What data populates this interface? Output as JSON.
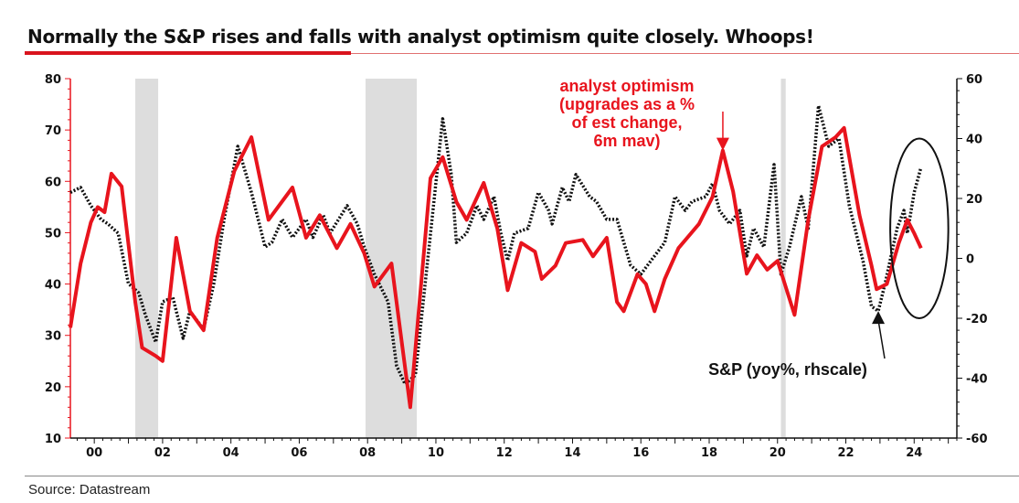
{
  "title": "Normally the S&P rises and falls with analyst optimism quite closely. Whoops!",
  "source": "Source: Datastream",
  "chart_data": {
    "type": "line",
    "title": "Normally the S&P rises and falls with analyst optimism quite closely. Whoops!",
    "xlim": [
      1999.3,
      2025.25
    ],
    "x_ticks": [
      "00",
      "02",
      "04",
      "06",
      "08",
      "10",
      "12",
      "14",
      "16",
      "18",
      "20",
      "22",
      "24"
    ],
    "x_tick_years": [
      2000,
      2002,
      2004,
      2006,
      2008,
      2010,
      2012,
      2014,
      2016,
      2018,
      2020,
      2022,
      2024
    ],
    "y_left": {
      "lim": [
        10,
        80
      ],
      "ticks": [
        10,
        20,
        30,
        40,
        50,
        60,
        70,
        80
      ],
      "color": "#e8141d"
    },
    "y_right": {
      "lim": [
        -60,
        60
      ],
      "ticks": [
        -60,
        -40,
        -20,
        0,
        20,
        40,
        60
      ],
      "color": "#111111"
    },
    "grid": false,
    "recessions": [
      [
        2001.2,
        2001.87
      ],
      [
        2007.94,
        2009.44
      ],
      [
        2020.1,
        2020.24
      ]
    ],
    "recession_color": "#dddddd",
    "series": [
      {
        "name": "analyst optimism (upgrades as a % of est change, 6m mav)",
        "axis": "left",
        "color": "#e8141d",
        "style": "solid",
        "x": [
          1999.3,
          1999.6,
          1999.9,
          2000.1,
          2000.3,
          2000.5,
          2000.8,
          2001.2,
          2001.4,
          2001.8,
          2002.0,
          2002.4,
          2002.8,
          2003.2,
          2003.6,
          2004.1,
          2004.6,
          2005.1,
          2005.8,
          2006.2,
          2006.6,
          2007.1,
          2007.5,
          2007.9,
          2008.2,
          2008.7,
          2009.25,
          2009.84,
          2010.2,
          2010.6,
          2010.9,
          2011.4,
          2011.8,
          2012.1,
          2012.5,
          2012.9,
          2013.1,
          2013.5,
          2013.8,
          2014.3,
          2014.6,
          2015.0,
          2015.3,
          2015.5,
          2015.9,
          2016.15,
          2016.4,
          2016.7,
          2017.1,
          2017.7,
          2018.1,
          2018.4,
          2018.7,
          2019.1,
          2019.4,
          2019.7,
          2020.0,
          2020.5,
          2020.9,
          2021.3,
          2021.7,
          2021.95,
          2022.4,
          2022.75,
          2022.9,
          2023.2,
          2023.55,
          2023.8,
          2024.0,
          2024.2
        ],
        "y": [
          31.5,
          44,
          52,
          55,
          54,
          61.5,
          59,
          36.5,
          27.6,
          26,
          25,
          49,
          34.7,
          31,
          49,
          62,
          68.6,
          52.5,
          58.8,
          49,
          53.4,
          47,
          51.7,
          46,
          39.5,
          44,
          16,
          60.6,
          64.7,
          56,
          52.5,
          59.7,
          50.8,
          38.8,
          48,
          46.3,
          41,
          43.6,
          48,
          48.6,
          45.4,
          49,
          36.5,
          34.7,
          41.9,
          40,
          34.7,
          41,
          47,
          51.7,
          57,
          66,
          58,
          42,
          45.6,
          42.8,
          44.5,
          34,
          52.5,
          66.8,
          68.6,
          70.4,
          53.4,
          43.6,
          39,
          40,
          48,
          52.5,
          49.9,
          47
        ]
      },
      {
        "name": "S&P (yoy%, rhscale)",
        "axis": "right",
        "color": "#111111",
        "style": "dotted",
        "x": [
          1999.3,
          1999.6,
          1999.9,
          2000.2,
          2000.4,
          2000.7,
          2001.0,
          2001.3,
          2001.5,
          2001.8,
          2002.0,
          2002.3,
          2002.6,
          2002.8,
          2003.2,
          2003.5,
          2003.8,
          2004.2,
          2004.6,
          2005.0,
          2005.2,
          2005.5,
          2005.8,
          2006.2,
          2006.4,
          2006.7,
          2006.9,
          2007.4,
          2007.7,
          2007.9,
          2008.2,
          2008.6,
          2008.85,
          2009.1,
          2009.4,
          2009.8,
          2010.2,
          2010.45,
          2010.6,
          2010.9,
          2011.2,
          2011.4,
          2011.7,
          2011.9,
          2012.1,
          2012.3,
          2012.7,
          2013.0,
          2013.3,
          2013.4,
          2013.7,
          2013.9,
          2014.1,
          2014.5,
          2014.7,
          2015.0,
          2015.3,
          2015.7,
          2016.0,
          2016.3,
          2016.7,
          2017.0,
          2017.3,
          2017.5,
          2017.9,
          2018.1,
          2018.3,
          2018.6,
          2018.9,
          2019.1,
          2019.3,
          2019.6,
          2019.9,
          2020.1,
          2020.35,
          2020.7,
          2020.9,
          2021.2,
          2021.5,
          2021.8,
          2022.1,
          2022.5,
          2022.75,
          2022.95,
          2023.15,
          2023.5,
          2023.7,
          2023.8,
          2024.0,
          2024.2
        ],
        "y": [
          22,
          23.7,
          17.6,
          13,
          11.5,
          8.4,
          -8.4,
          -11.5,
          -19,
          -28,
          -14.5,
          -13,
          -26.7,
          -17.6,
          -23.7,
          -8.4,
          13,
          37.4,
          22,
          3.8,
          5.3,
          13,
          7,
          13,
          7,
          14.5,
          8.4,
          17.6,
          11.5,
          3.8,
          -5.3,
          -14.5,
          -35.9,
          -42,
          -39,
          3.8,
          46.6,
          28,
          5.3,
          8.4,
          17.6,
          13,
          20.6,
          8.4,
          -0.7,
          8.4,
          10,
          22,
          16,
          11.5,
          23.7,
          19,
          28,
          20.6,
          19,
          13,
          13,
          -2.3,
          -5.3,
          -0.7,
          5.3,
          20.6,
          16,
          19,
          20.6,
          25,
          16,
          11.5,
          16,
          0.8,
          10,
          3.8,
          31.3,
          -5.3,
          3.8,
          20.6,
          10,
          51,
          37.4,
          40,
          17.6,
          -0.7,
          -16,
          -17.6,
          -8.4,
          10,
          16,
          8.4,
          22,
          30.4
        ]
      }
    ],
    "annotations": [
      {
        "text_lines": [
          "analyst optimism",
          "(upgrades as a %",
          "of est change,",
          "6m mav)"
        ],
        "color": "#e8141d",
        "points_to": [
          2018.4,
          66
        ],
        "axis": "left"
      },
      {
        "text_lines": [
          "S&P (yoy%, rhscale)"
        ],
        "color": "#111111",
        "points_to": [
          2022.95,
          -17.6
        ],
        "axis": "right"
      }
    ],
    "highlight": {
      "shape": "ellipse",
      "x_range": [
        2023.3,
        2025.0
      ],
      "y_right_range": [
        -20,
        40
      ]
    }
  }
}
